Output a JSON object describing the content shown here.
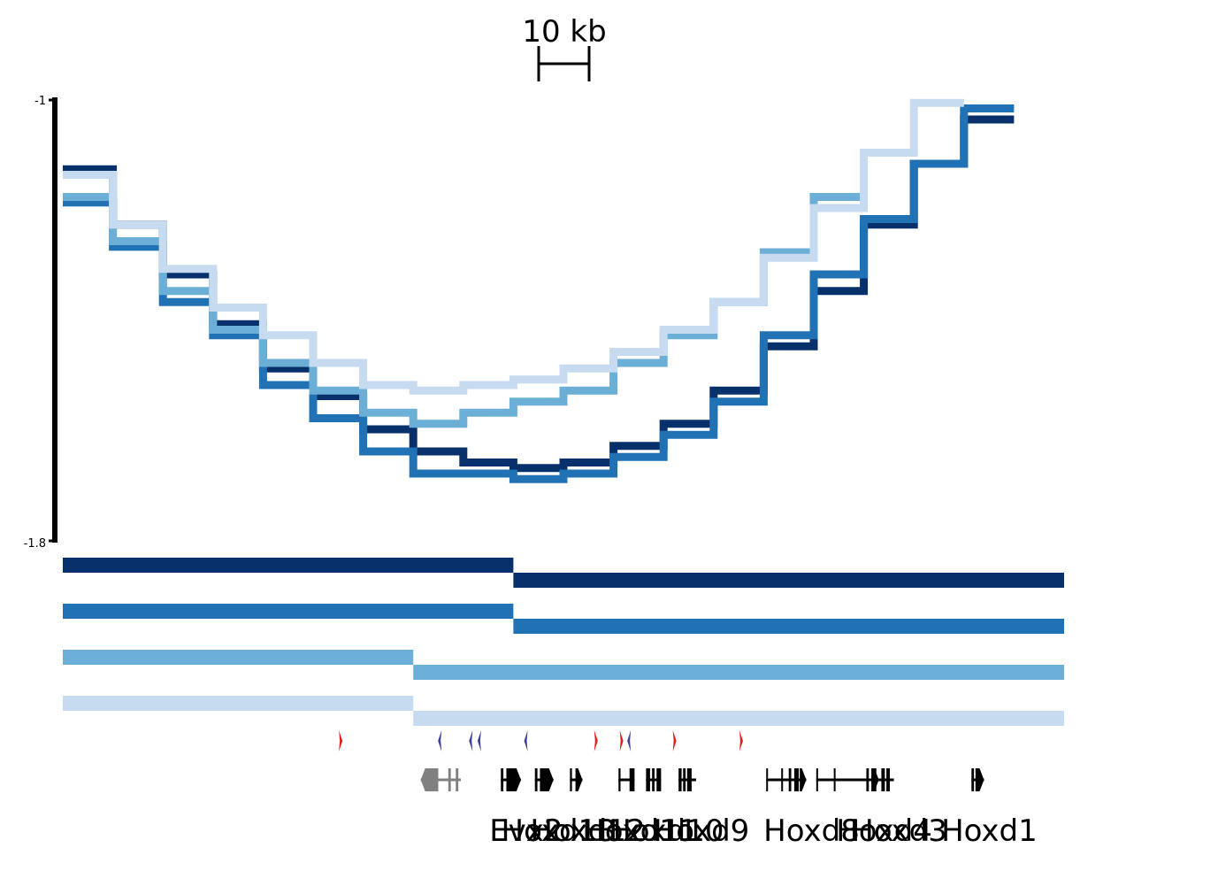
{
  "chart_data": {
    "type": "line",
    "step": true,
    "scale_bar": {
      "label": "10 kb",
      "length_kb": 10
    },
    "y_axis": {
      "top_label": "-1",
      "bottom_label": "-1.8",
      "ylim": [
        -1.8,
        -1.0
      ]
    },
    "x_range_kb": [
      0,
      190
    ],
    "bin_width_kb": 10,
    "series": [
      {
        "color": "#08306b",
        "values": [
          -1.13,
          -1.23,
          -1.32,
          -1.41,
          -1.49,
          -1.54,
          -1.6,
          -1.64,
          -1.66,
          -1.67,
          -1.66,
          -1.63,
          -1.59,
          -1.53,
          -1.45,
          -1.35,
          -1.23,
          -1.12,
          -1.04
        ]
      },
      {
        "color": "#2171b5",
        "values": [
          -1.19,
          -1.27,
          -1.37,
          -1.43,
          -1.52,
          -1.58,
          -1.64,
          -1.68,
          -1.68,
          -1.69,
          -1.68,
          -1.65,
          -1.61,
          -1.55,
          -1.43,
          -1.32,
          -1.22,
          -1.12,
          -1.02
        ]
      },
      {
        "color": "#6baed6",
        "values": [
          -1.18,
          -1.26,
          -1.35,
          -1.42,
          -1.48,
          -1.53,
          -1.57,
          -1.59,
          -1.57,
          -1.55,
          -1.53,
          -1.48,
          -1.43,
          -1.37,
          -1.28,
          -1.18
        ]
      },
      {
        "color": "#c6dbef",
        "values": [
          -1.14,
          -1.23,
          -1.31,
          -1.38,
          -1.43,
          -1.48,
          -1.52,
          -1.53,
          -1.52,
          -1.51,
          -1.49,
          -1.46,
          -1.42,
          -1.37,
          -1.29,
          -1.2,
          -1.1,
          -1.01
        ]
      }
    ],
    "domains": [
      {
        "color": "#08306b",
        "segments": [
          [
            0,
            90
          ],
          [
            90,
            200
          ]
        ]
      },
      {
        "color": "#2171b5",
        "segments": [
          [
            0,
            90
          ],
          [
            90,
            200
          ]
        ]
      },
      {
        "color": "#6baed6",
        "segments": [
          [
            0,
            70
          ],
          [
            70,
            200
          ]
        ]
      },
      {
        "color": "#c6dbef",
        "segments": [
          [
            0,
            70
          ],
          [
            70,
            200
          ]
        ]
      }
    ],
    "ctcf_sites": [
      {
        "pos_kb": 55.5,
        "strand": "+",
        "color": "#e31a1c"
      },
      {
        "pos_kb": 75.3,
        "strand": "-",
        "color": "#3f3f9f"
      },
      {
        "pos_kb": 81.5,
        "strand": "-",
        "color": "#3f3f9f"
      },
      {
        "pos_kb": 83.2,
        "strand": "-",
        "color": "#3f3f9f"
      },
      {
        "pos_kb": 92.5,
        "strand": "-",
        "color": "#3f3f9f"
      },
      {
        "pos_kb": 106.5,
        "strand": "+",
        "color": "#e31a1c"
      },
      {
        "pos_kb": 111.6,
        "strand": "+",
        "color": "#e31a1c"
      },
      {
        "pos_kb": 113.1,
        "strand": "-",
        "color": "#3f3f9f"
      },
      {
        "pos_kb": 122.2,
        "strand": "+",
        "color": "#e31a1c"
      },
      {
        "pos_kb": 135.5,
        "strand": "+",
        "color": "#e31a1c"
      }
    ],
    "genes": [
      {
        "name": "",
        "start_kb": 71.5,
        "end_kb": 79.5,
        "strand": "-",
        "color": "#808080",
        "exons": [
          [
            71.5,
            75.0
          ],
          [
            77.0,
            77.5
          ],
          [
            78.5,
            79.0
          ]
        ]
      },
      {
        "name": "Evx2",
        "start_kb": 87.5,
        "end_kb": 91.5,
        "strand": "+",
        "color": "#000000",
        "exons": [
          [
            87.5,
            88.0
          ],
          [
            88.6,
            91.5
          ]
        ]
      },
      {
        "name": "Hoxd13",
        "start_kb": 94.3,
        "end_kb": 98.0,
        "strand": "+",
        "color": "#000000",
        "exons": [
          [
            94.3,
            94.8
          ],
          [
            95.3,
            98.0
          ]
        ]
      },
      {
        "name": "Hoxd12",
        "start_kb": 101.3,
        "end_kb": 103.8,
        "strand": "+",
        "color": "#000000",
        "exons": [
          [
            101.3,
            101.7
          ],
          [
            102.4,
            103.8
          ]
        ]
      },
      {
        "name": "Hoxd11",
        "start_kb": 111.0,
        "end_kb": 114.2,
        "strand": "+",
        "color": "#000000",
        "exons": [
          [
            111.0,
            111.4
          ],
          [
            113.2,
            114.2
          ]
        ]
      },
      {
        "name": "Hoxd10",
        "start_kb": 116.5,
        "end_kb": 119.5,
        "strand": "+",
        "color": "#000000",
        "exons": [
          [
            116.5,
            117.3
          ],
          [
            117.7,
            118.2
          ],
          [
            118.6,
            119.5
          ]
        ]
      },
      {
        "name": "Hoxd9",
        "start_kb": 123.0,
        "end_kb": 126.5,
        "strand": "+",
        "color": "#000000",
        "exons": [
          [
            123.0,
            123.6
          ],
          [
            123.9,
            124.4
          ],
          [
            124.7,
            125.6
          ]
        ]
      },
      {
        "name": "Hoxd8",
        "start_kb": 140.5,
        "end_kb": 148.5,
        "strand": "+",
        "color": "#000000",
        "exons": [
          [
            140.5,
            140.7
          ],
          [
            143.5,
            143.7
          ],
          [
            145.0,
            145.5
          ],
          [
            146.1,
            147.0
          ],
          [
            147.2,
            148.5
          ]
        ]
      },
      {
        "name": "Hoxd4",
        "start_kb": 150.5,
        "end_kb": 163.0,
        "strand": "+",
        "color": "#000000",
        "exons": [
          [
            150.5,
            150.7
          ],
          [
            154.0,
            154.2
          ],
          [
            160.5,
            161.0
          ],
          [
            161.5,
            163.0
          ]
        ]
      },
      {
        "name": "Hoxd3",
        "start_kb": 162.0,
        "end_kb": 166.0,
        "strand": "+",
        "color": "#000000",
        "exons": [
          [
            162.0,
            162.5
          ],
          [
            163.5,
            164.2
          ],
          [
            164.5,
            165.2
          ]
        ]
      },
      {
        "name": "Hoxd1",
        "start_kb": 181.5,
        "end_kb": 184.0,
        "strand": "+",
        "color": "#000000",
        "exons": [
          [
            181.5,
            182.0
          ],
          [
            182.3,
            184.0
          ]
        ]
      }
    ]
  }
}
